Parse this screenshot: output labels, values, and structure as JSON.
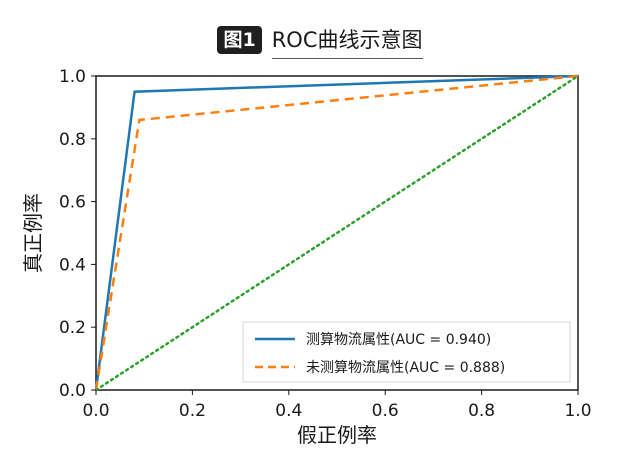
{
  "header": {
    "badge": "图1",
    "title": "ROC曲线示意图"
  },
  "chart_data": {
    "type": "line",
    "title": "ROC曲线示意图",
    "xlabel": "假正例率",
    "ylabel": "真正例率",
    "xlim": [
      0.0,
      1.0
    ],
    "ylim": [
      0.0,
      1.0
    ],
    "xticks": [
      "0.0",
      "0.2",
      "0.4",
      "0.6",
      "0.8",
      "1.0"
    ],
    "yticks": [
      "0.0",
      "0.2",
      "0.4",
      "0.6",
      "0.8",
      "1.0"
    ],
    "grid": false,
    "legend_position": "lower-right",
    "series": [
      {
        "name": "测算物流属性(AUC = 0.940)",
        "color": "#1f77b4",
        "style": "solid",
        "x": [
          0.0,
          0.08,
          1.0
        ],
        "y": [
          0.0,
          0.95,
          1.0
        ]
      },
      {
        "name": "未测算物流属性(AUC = 0.888)",
        "color": "#ff7f0e",
        "style": "dashed",
        "x": [
          0.0,
          0.09,
          1.0
        ],
        "y": [
          0.0,
          0.86,
          1.0
        ]
      },
      {
        "name": "",
        "color": "#2ca02c",
        "style": "dotted",
        "x": [
          0.0,
          1.0
        ],
        "y": [
          0.0,
          1.0
        ]
      }
    ]
  }
}
